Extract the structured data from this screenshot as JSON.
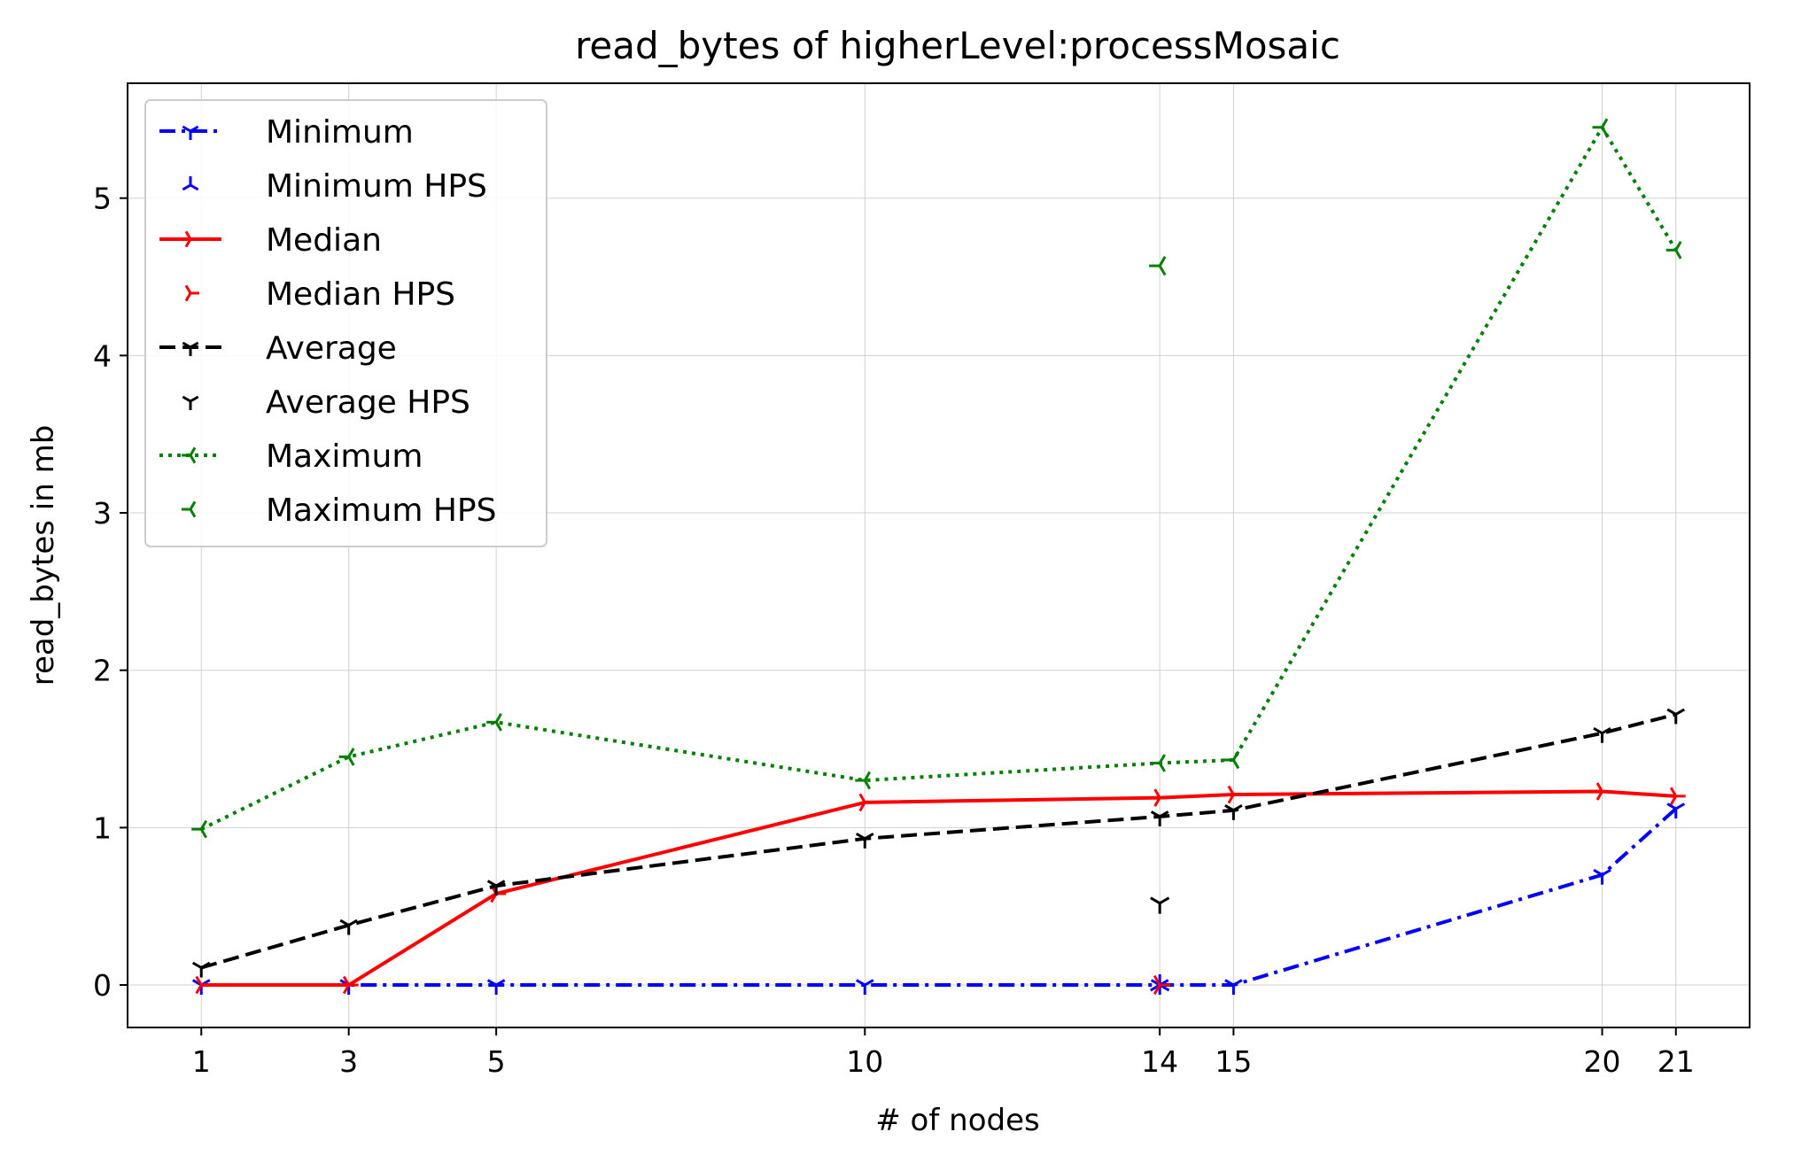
{
  "chart_data": {
    "type": "line",
    "title": "read_bytes of higherLevel:processMosaic",
    "xlabel": "# of nodes",
    "ylabel": "read_bytes in mb",
    "x_ticks": [
      1,
      3,
      5,
      10,
      14,
      15,
      20,
      21
    ],
    "y_ticks": [
      0,
      1,
      2,
      3,
      4,
      5
    ],
    "xlim": [
      0,
      22
    ],
    "ylim": [
      -0.27,
      5.73
    ],
    "grid": true,
    "legend_position": "top-left",
    "series": [
      {
        "name": "Minimum",
        "color": "#0000ff",
        "linestyle": "dashdot",
        "marker": "tri-down",
        "x": [
          1,
          3,
          5,
          10,
          14,
          15,
          20,
          21
        ],
        "y": [
          0,
          0,
          0,
          0,
          0,
          0,
          0.7,
          1.12
        ]
      },
      {
        "name": "Minimum HPS",
        "color": "#0000ff",
        "linestyle": "none",
        "marker": "tri-up",
        "x": [
          14
        ],
        "y": [
          0
        ]
      },
      {
        "name": "Median",
        "color": "#ff0000",
        "linestyle": "solid",
        "marker": "tri-right",
        "x": [
          1,
          3,
          5,
          10,
          14,
          15,
          20,
          21
        ],
        "y": [
          0,
          0,
          0.58,
          1.16,
          1.19,
          1.21,
          1.23,
          1.2
        ]
      },
      {
        "name": "Median HPS",
        "color": "#ff0000",
        "linestyle": "none",
        "marker": "tri-right",
        "x": [
          14
        ],
        "y": [
          0
        ]
      },
      {
        "name": "Average",
        "color": "#000000",
        "linestyle": "dashed",
        "marker": "tri-down",
        "x": [
          1,
          3,
          5,
          10,
          14,
          15,
          20,
          21
        ],
        "y": [
          0.11,
          0.38,
          0.63,
          0.93,
          1.07,
          1.11,
          1.6,
          1.72
        ]
      },
      {
        "name": "Average HPS",
        "color": "#000000",
        "linestyle": "none",
        "marker": "tri-down",
        "x": [
          14
        ],
        "y": [
          0.52
        ]
      },
      {
        "name": "Maximum",
        "color": "#008000",
        "linestyle": "dotted",
        "marker": "tri-left",
        "x": [
          1,
          3,
          5,
          10,
          14,
          15,
          20,
          21
        ],
        "y": [
          0.99,
          1.45,
          1.67,
          1.3,
          1.41,
          1.43,
          5.45,
          4.67
        ]
      },
      {
        "name": "Maximum HPS",
        "color": "#008000",
        "linestyle": "none",
        "marker": "tri-left",
        "x": [
          14
        ],
        "y": [
          4.57
        ]
      }
    ]
  }
}
